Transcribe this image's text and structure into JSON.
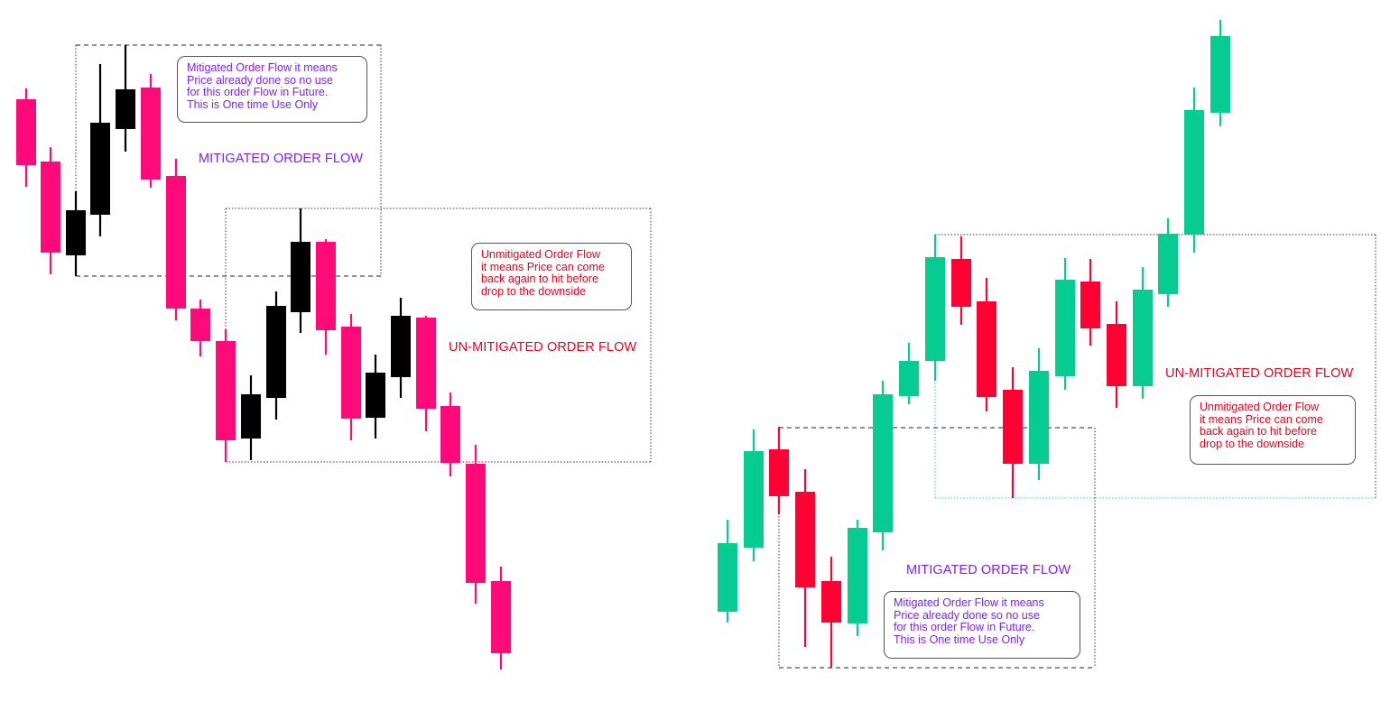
{
  "colors": {
    "bearish_pink": "#ff0a78",
    "bullish_black": "#000000",
    "bullish_green": "#06cc92",
    "bearish_red": "#ff0033",
    "mitigated_text": "#7b1fff",
    "unmitigated_text": "#e5001c",
    "cyan_box": "#2ec6d6"
  },
  "left_panel": {
    "mitigated_title": "MITIGATED ORDER FLOW",
    "unmitigated_title": "UN-MITIGATED ORDER FLOW",
    "mitigated_note": [
      "Mitigated Order Flow it means",
      "Price already done so no use",
      "for this order Flow in Future.",
      "This is One time Use Only"
    ],
    "unmitigated_note": [
      "Unmitigated Order Flow",
      "it means Price can come",
      "back again to hit before",
      "drop to the downside"
    ]
  },
  "right_panel": {
    "mitigated_title": "MITIGATED ORDER FLOW",
    "unmitigated_title": "UN-MITIGATED ORDER FLOW",
    "mitigated_note": [
      "Mitigated Order Flow it means",
      "Price already done so no use",
      "for this order Flow in Future.",
      "This is One time Use Only"
    ],
    "unmitigated_note": [
      "Unmitigated Order Flow",
      "it means Price can come",
      "back again to hit before",
      "drop to the downside"
    ]
  }
}
